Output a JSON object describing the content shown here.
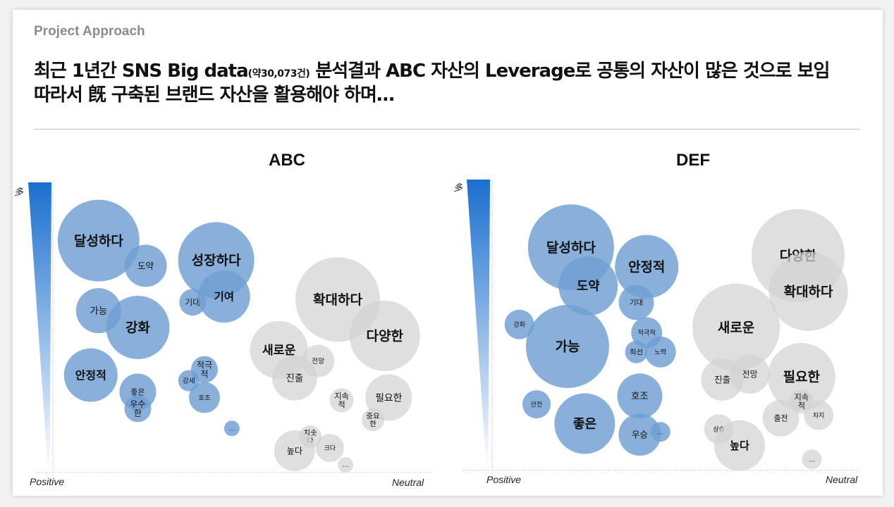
{
  "header": {
    "eyebrow": "Project Approach",
    "line1_a": "최근 1년간 SNS Big data",
    "line1_small": "(약30,073건)",
    "line1_b": " 분석결과 ABC 자산의 Leverage로 공통의 자산이 많은 것으로 보임",
    "line2": "따라서 旣 구축된 브랜드 자산을 활용해야 하며…"
  },
  "colors": {
    "positive": "#6f9fd2",
    "neutral": "#d3d3d3",
    "gradient_top": "#1a6fcf",
    "gradient_bottom": "#ffffff"
  },
  "chart_data": [
    {
      "type": "bubble",
      "title": "ABC",
      "y_axis_label": "多",
      "x_axis_left_label": "Positive",
      "x_axis_right_label": "Neutral",
      "bubbles": [
        {
          "label": "달성하다",
          "sentiment": "positive",
          "size": 58,
          "x": 0.14,
          "y": 0.82
        },
        {
          "label": "도약",
          "sentiment": "positive",
          "size": 30,
          "x": 0.26,
          "y": 0.73
        },
        {
          "label": "성장하다",
          "sentiment": "positive",
          "size": 54,
          "x": 0.44,
          "y": 0.75
        },
        {
          "label": "기대",
          "sentiment": "positive",
          "size": 19,
          "x": 0.38,
          "y": 0.6
        },
        {
          "label": "기여",
          "sentiment": "positive",
          "size": 37,
          "x": 0.46,
          "y": 0.62
        },
        {
          "label": "가능",
          "sentiment": "positive",
          "size": 32,
          "x": 0.14,
          "y": 0.57
        },
        {
          "label": "강화",
          "sentiment": "positive",
          "size": 45,
          "x": 0.24,
          "y": 0.51
        },
        {
          "label": "안정적",
          "sentiment": "positive",
          "size": 38,
          "x": 0.12,
          "y": 0.34
        },
        {
          "label": "좋은",
          "sentiment": "positive",
          "size": 26,
          "x": 0.24,
          "y": 0.28
        },
        {
          "label": "우수한",
          "sentiment": "positive",
          "size": 19,
          "x": 0.24,
          "y": 0.22
        },
        {
          "label": "적극적",
          "sentiment": "positive",
          "size": 19,
          "x": 0.41,
          "y": 0.36
        },
        {
          "label": "강세",
          "sentiment": "positive",
          "size": 15,
          "x": 0.37,
          "y": 0.32
        },
        {
          "label": "호조",
          "sentiment": "positive",
          "size": 22,
          "x": 0.41,
          "y": 0.26
        },
        {
          "label": "…",
          "sentiment": "positive",
          "size": 11,
          "x": 0.48,
          "y": 0.15
        },
        {
          "label": "확대하다",
          "sentiment": "neutral",
          "size": 60,
          "x": 0.75,
          "y": 0.61
        },
        {
          "label": "다양한",
          "sentiment": "neutral",
          "size": 50,
          "x": 0.87,
          "y": 0.48
        },
        {
          "label": "새로운",
          "sentiment": "neutral",
          "size": 41,
          "x": 0.6,
          "y": 0.43
        },
        {
          "label": "전망",
          "sentiment": "neutral",
          "size": 23,
          "x": 0.7,
          "y": 0.39
        },
        {
          "label": "진출",
          "sentiment": "neutral",
          "size": 32,
          "x": 0.64,
          "y": 0.33
        },
        {
          "label": "지속적",
          "sentiment": "neutral",
          "size": 17,
          "x": 0.76,
          "y": 0.25
        },
        {
          "label": "필요한",
          "sentiment": "neutral",
          "size": 33,
          "x": 0.88,
          "y": 0.26
        },
        {
          "label": "중요한",
          "sentiment": "neutral",
          "size": 16,
          "x": 0.84,
          "y": 0.18
        },
        {
          "label": "치솟다",
          "sentiment": "neutral",
          "size": 16,
          "x": 0.68,
          "y": 0.12
        },
        {
          "label": "높다",
          "sentiment": "neutral",
          "size": 29,
          "x": 0.64,
          "y": 0.07
        },
        {
          "label": "크다",
          "sentiment": "neutral",
          "size": 20,
          "x": 0.73,
          "y": 0.08
        },
        {
          "label": "…",
          "sentiment": "neutral",
          "size": 11,
          "x": 0.77,
          "y": 0.02
        }
      ]
    },
    {
      "type": "bubble",
      "title": "DEF",
      "y_axis_label": "多",
      "x_axis_left_label": "Positive",
      "x_axis_right_label": "Neutral",
      "bubbles": [
        {
          "label": "달성하다",
          "sentiment": "positive",
          "size": 61,
          "x": 0.18,
          "y": 0.81
        },
        {
          "label": "도약",
          "sentiment": "positive",
          "size": 42,
          "x": 0.23,
          "y": 0.67
        },
        {
          "label": "안정적",
          "sentiment": "positive",
          "size": 45,
          "x": 0.4,
          "y": 0.74
        },
        {
          "label": "기대",
          "sentiment": "positive",
          "size": 25,
          "x": 0.37,
          "y": 0.61
        },
        {
          "label": "강화",
          "sentiment": "positive",
          "size": 21,
          "x": 0.03,
          "y": 0.53
        },
        {
          "label": "가능",
          "sentiment": "positive",
          "size": 59,
          "x": 0.17,
          "y": 0.45
        },
        {
          "label": "적극적",
          "sentiment": "positive",
          "size": 22,
          "x": 0.4,
          "y": 0.5
        },
        {
          "label": "최선",
          "sentiment": "positive",
          "size": 16,
          "x": 0.37,
          "y": 0.43
        },
        {
          "label": "노력",
          "sentiment": "positive",
          "size": 22,
          "x": 0.44,
          "y": 0.43
        },
        {
          "label": "호조",
          "sentiment": "positive",
          "size": 32,
          "x": 0.38,
          "y": 0.27
        },
        {
          "label": "우승",
          "sentiment": "positive",
          "size": 30,
          "x": 0.38,
          "y": 0.13
        },
        {
          "label": "…",
          "sentiment": "positive",
          "size": 14,
          "x": 0.44,
          "y": 0.14
        },
        {
          "label": "안전",
          "sentiment": "positive",
          "size": 20,
          "x": 0.08,
          "y": 0.24
        },
        {
          "label": "좋은",
          "sentiment": "positive",
          "size": 43,
          "x": 0.22,
          "y": 0.17
        },
        {
          "label": "다양한",
          "sentiment": "neutral",
          "size": 66,
          "x": 0.84,
          "y": 0.78
        },
        {
          "label": "확대하다",
          "sentiment": "neutral",
          "size": 56,
          "x": 0.87,
          "y": 0.65
        },
        {
          "label": "새로운",
          "sentiment": "neutral",
          "size": 62,
          "x": 0.66,
          "y": 0.52
        },
        {
          "label": "진출",
          "sentiment": "neutral",
          "size": 30,
          "x": 0.62,
          "y": 0.33
        },
        {
          "label": "전망",
          "sentiment": "neutral",
          "size": 28,
          "x": 0.7,
          "y": 0.35
        },
        {
          "label": "필요한",
          "sentiment": "neutral",
          "size": 48,
          "x": 0.85,
          "y": 0.34
        },
        {
          "label": "지속적",
          "sentiment": "neutral",
          "size": 17,
          "x": 0.85,
          "y": 0.25
        },
        {
          "label": "차지",
          "sentiment": "neutral",
          "size": 21,
          "x": 0.9,
          "y": 0.2
        },
        {
          "label": "출전",
          "sentiment": "neutral",
          "size": 26,
          "x": 0.79,
          "y": 0.19
        },
        {
          "label": "상승",
          "sentiment": "neutral",
          "size": 21,
          "x": 0.61,
          "y": 0.15
        },
        {
          "label": "높다",
          "sentiment": "neutral",
          "size": 36,
          "x": 0.67,
          "y": 0.09
        },
        {
          "label": "…",
          "sentiment": "neutral",
          "size": 14,
          "x": 0.88,
          "y": 0.04
        }
      ]
    }
  ]
}
